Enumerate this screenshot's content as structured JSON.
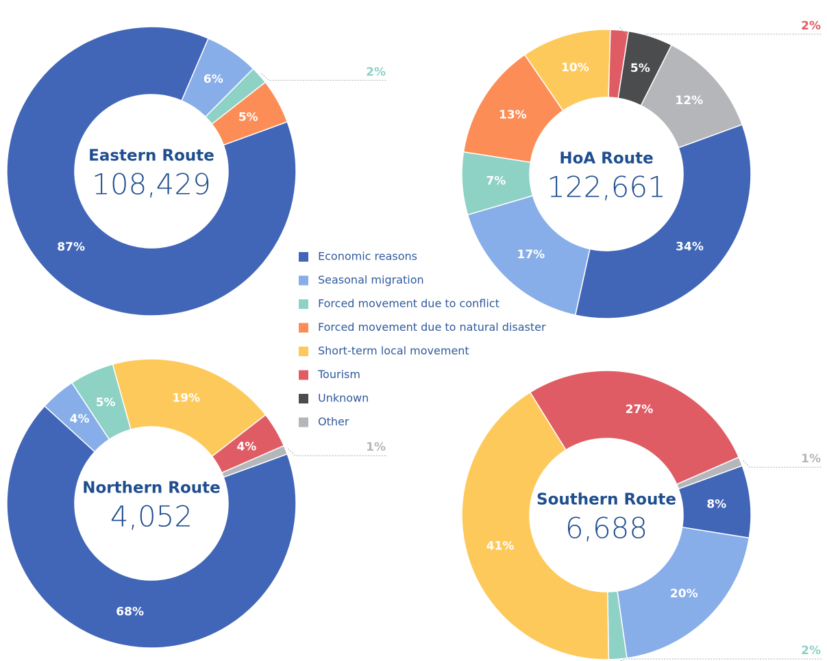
{
  "legend": {
    "categories": [
      "Economic reasons",
      "Seasonal migration",
      "Forced movement due to conflict",
      "Forced movement due to natural disaster",
      "Short-term local movement",
      "Tourism",
      "Unknown",
      "Other"
    ],
    "colors": [
      "#4166b7",
      "#87aee8",
      "#8ed1c5",
      "#fd8d56",
      "#fec95b",
      "#e05c65",
      "#4b4c4e",
      "#b4b6b9"
    ]
  },
  "chart_data": [
    {
      "type": "pie",
      "title": "Eastern Route",
      "total": "108,429",
      "values": [
        87,
        6,
        2,
        5,
        0,
        0,
        0,
        0
      ],
      "value_labels": [
        "87%",
        "6%",
        "2%",
        "5%",
        null,
        null,
        null,
        null
      ]
    },
    {
      "type": "pie",
      "title": "HoA Route",
      "total": "122,661",
      "values": [
        34,
        17,
        7,
        13,
        10,
        2,
        5,
        12
      ],
      "value_labels": [
        "34%",
        "17%",
        "7%",
        "13%",
        "10%",
        "2%",
        "5%",
        "12%"
      ]
    },
    {
      "type": "pie",
      "title": "Northern Route",
      "total": "4,052",
      "values": [
        68,
        4,
        5,
        0,
        19,
        4,
        0,
        1
      ],
      "value_labels": [
        "68%",
        "4%",
        "5%",
        null,
        "19%",
        "4%",
        null,
        "1%"
      ]
    },
    {
      "type": "pie",
      "title": "Southern Route",
      "total": "6,688",
      "values": [
        8,
        20,
        2,
        0,
        41,
        27,
        0,
        1
      ],
      "value_labels": [
        "8%",
        "20%",
        "2%",
        null,
        "41%",
        "27%",
        null,
        "1%"
      ]
    }
  ]
}
